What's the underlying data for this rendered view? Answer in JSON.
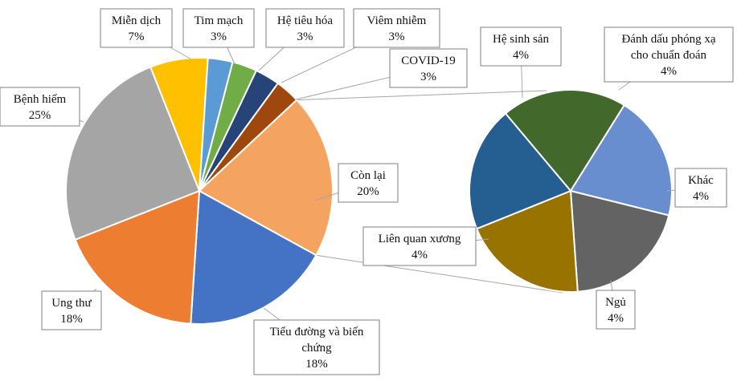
{
  "chart_data": {
    "type": "pie",
    "subtype": "pie-of-pie",
    "title": "",
    "main_pie": {
      "slices": [
        {
          "label": "Miễn dịch",
          "value": 7,
          "value_label": "7%",
          "color": "#FFC000"
        },
        {
          "label": "Tim mạch",
          "value": 3,
          "value_label": "3%",
          "color": "#5B9BD5"
        },
        {
          "label": "Hệ tiêu hóa",
          "value": 3,
          "value_label": "3%",
          "color": "#70AD47"
        },
        {
          "label": "Viêm nhiễm",
          "value": 3,
          "value_label": "3%",
          "color": "#264478"
        },
        {
          "label": "COVID-19",
          "value": 3,
          "value_label": "3%",
          "color": "#9E480E"
        },
        {
          "label": "Còn lại",
          "value": 20,
          "value_label": "20%",
          "color": "#F4A460"
        },
        {
          "label": "Tiểu đường và biến chứng",
          "value": 18,
          "value_label": "18%",
          "color": "#4472C4"
        },
        {
          "label": "Ung thư",
          "value": 18,
          "value_label": "18%",
          "color": "#ED7D31"
        },
        {
          "label": "Bệnh hiếm",
          "value": 25,
          "value_label": "25%",
          "color": "#A5A5A5"
        }
      ]
    },
    "secondary_pie": {
      "of": "Còn lại",
      "slices": [
        {
          "label": "Đánh dấu phóng xạ cho chuẩn đoán",
          "value": 4,
          "value_label": "4%",
          "color": "#43682B"
        },
        {
          "label": "Khác",
          "value": 4,
          "value_label": "4%",
          "color": "#698ED0"
        },
        {
          "label": "Ngủ",
          "value": 4,
          "value_label": "4%",
          "color": "#636363"
        },
        {
          "label": "Liên quan xương",
          "value": 4,
          "value_label": "4%",
          "color": "#997300"
        },
        {
          "label": "Hệ sinh sản",
          "value": 4,
          "value_label": "4%",
          "color": "#255E91"
        }
      ]
    }
  }
}
